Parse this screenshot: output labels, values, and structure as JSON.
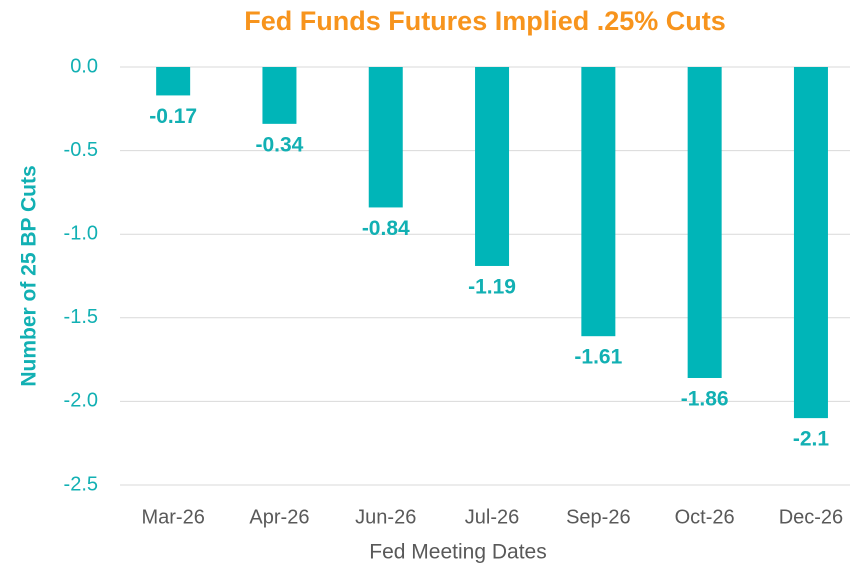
{
  "chart_data": {
    "type": "bar",
    "title": "Fed Funds Futures Implied .25% Cuts",
    "xlabel": "Fed Meeting Dates",
    "ylabel": "Number of 25 BP Cuts",
    "categories": [
      "Mar-26",
      "Apr-26",
      "Jun-26",
      "Jul-26",
      "Sep-26",
      "Oct-26",
      "Dec-26"
    ],
    "values": [
      -0.17,
      -0.34,
      -0.84,
      -1.19,
      -1.61,
      -1.86,
      -2.1
    ],
    "color": "#00b5b8",
    "ylim": [
      -2.5,
      0
    ],
    "yticks": [
      {
        "value": 0,
        "label": "0.0"
      },
      -0.5,
      {
        "value": -1,
        "label": "-1.0"
      },
      -1.5,
      {
        "value": -2,
        "label": "-2.0"
      },
      -2.5
    ],
    "grid": true
  }
}
